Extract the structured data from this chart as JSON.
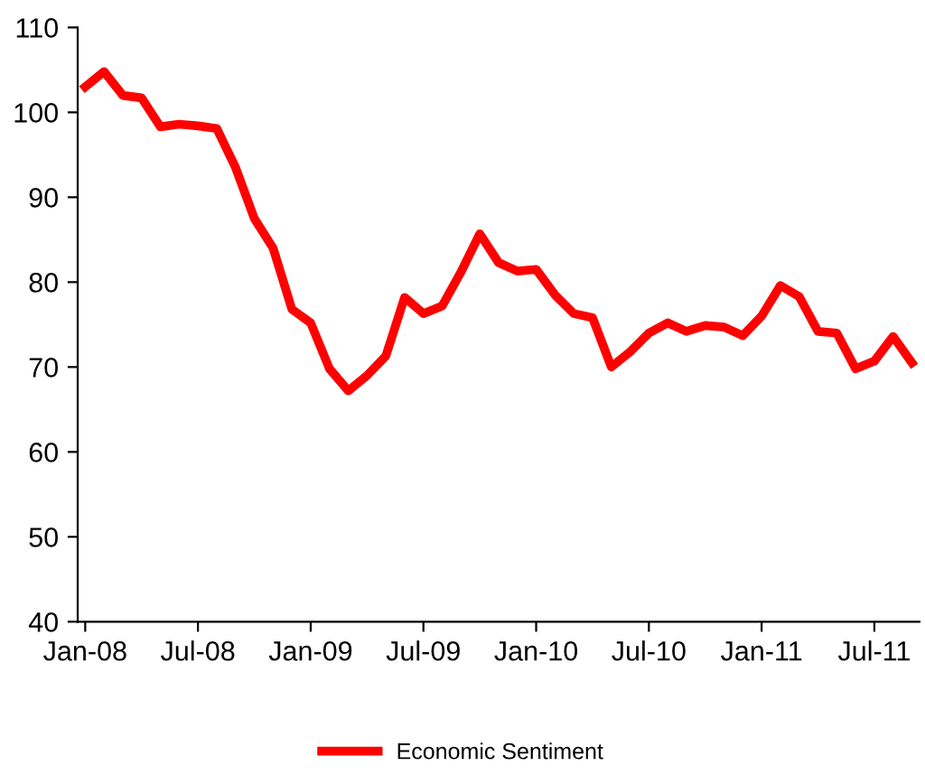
{
  "chart_data": {
    "type": "line",
    "categories": [
      "Jan-08",
      null,
      null,
      null,
      null,
      null,
      "Jul-08",
      null,
      null,
      null,
      null,
      null,
      "Jan-09",
      null,
      null,
      null,
      null,
      null,
      "Jul-09",
      null,
      null,
      null,
      null,
      null,
      "Jan-10",
      null,
      null,
      null,
      null,
      null,
      "Jul-10",
      null,
      null,
      null,
      null,
      null,
      "Jan-11",
      null,
      null,
      null,
      null,
      null,
      "Jul-11",
      null,
      null
    ],
    "series": [
      {
        "name": "Economic Sentiment",
        "color": "#ff0000",
        "values": [
          103,
          104.8,
          102,
          101.7,
          98.3,
          98.6,
          98.4,
          98.1,
          93.5,
          87.5,
          84,
          76.8,
          75.2,
          69.8,
          67.2,
          69,
          71.3,
          78.2,
          76.3,
          77.2,
          81.2,
          85.7,
          82.3,
          81.3,
          81.5,
          78.5,
          76.3,
          75.8,
          70,
          71.8,
          74,
          75.2,
          74.2,
          74.9,
          74.7,
          73.7,
          76,
          79.6,
          78.3,
          74.2,
          74,
          69.8,
          70.7,
          73.6,
          70.5
        ]
      }
    ],
    "ylim": [
      40,
      110
    ],
    "yticks": [
      40,
      50,
      60,
      70,
      80,
      90,
      100,
      110
    ],
    "grid": false,
    "legend": "bottom",
    "marker": "none",
    "line_style": "solid"
  }
}
